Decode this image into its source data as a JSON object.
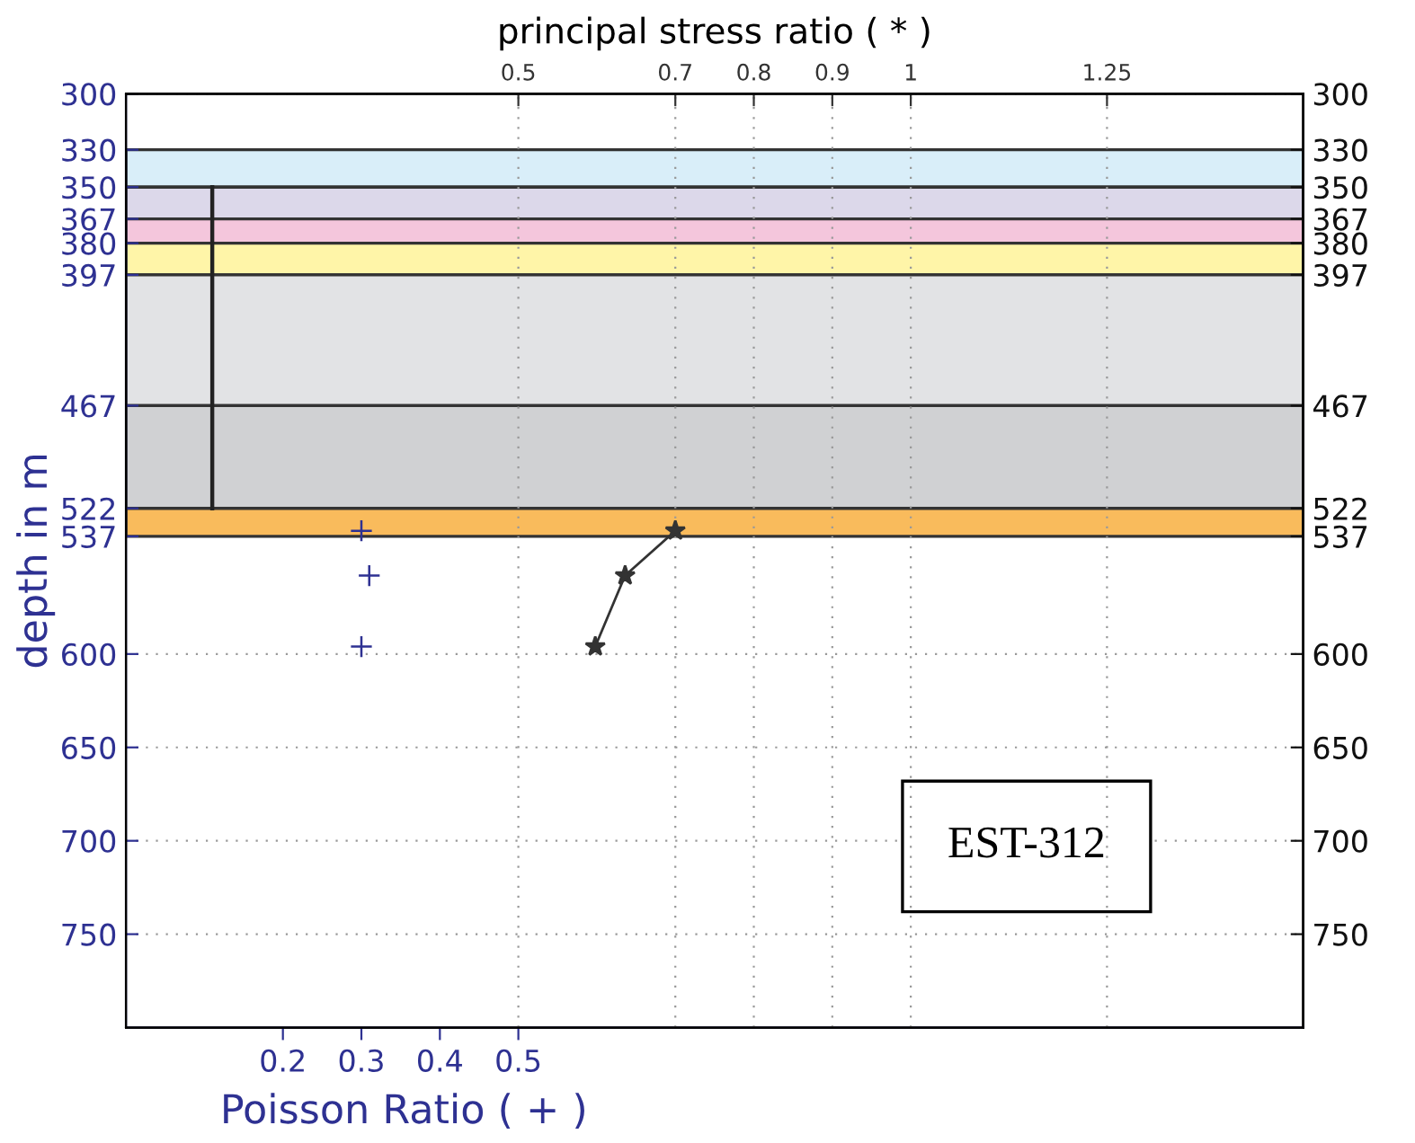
{
  "chart_data": {
    "type": "scatter",
    "xlabel": "Poisson Ratio ( + )",
    "x2label": "principal stress ratio ( * )",
    "ylabel": "depth in m",
    "xlim": [
      0,
      1.5
    ],
    "xticks": [
      0.2,
      0.3,
      0.4,
      0.5
    ],
    "x2lim": [
      0,
      1.5
    ],
    "x2ticks": [
      0.5,
      0.7,
      0.8,
      0.9,
      1,
      1.25
    ],
    "ylim": [
      800,
      300
    ],
    "yticks": [
      300,
      330,
      350,
      367,
      380,
      397,
      467,
      522,
      537,
      600,
      650,
      700,
      750
    ],
    "y2lim": [
      800,
      300
    ],
    "y2ticks": [
      300,
      330,
      350,
      367,
      380,
      397,
      467,
      522,
      537,
      600,
      650,
      700,
      750
    ],
    "grid": true,
    "bands": [
      {
        "axis": "y",
        "from": 330,
        "to": 350,
        "color": "#d9eef9"
      },
      {
        "axis": "y",
        "from": 350,
        "to": 367,
        "color": "#dcd8ea"
      },
      {
        "axis": "y",
        "from": 367,
        "to": 380,
        "color": "#f4c6dc"
      },
      {
        "axis": "y",
        "from": 380,
        "to": 397,
        "color": "#fff5a8"
      },
      {
        "axis": "y",
        "from": 397,
        "to": 467,
        "color": "#e2e3e5"
      },
      {
        "axis": "y",
        "from": 467,
        "to": 522,
        "color": "#d0d1d3"
      },
      {
        "axis": "y",
        "from": 522,
        "to": 537,
        "color": "#f9bb5c"
      }
    ],
    "series": [
      {
        "type": "line",
        "color": "#222222",
        "x": [
          0.11,
          0.11
        ],
        "values": [
          350,
          522
        ],
        "marker": "none"
      },
      {
        "color": "#2e3192",
        "x": [
          0.3,
          0.31,
          0.3
        ],
        "values": [
          534,
          558,
          596
        ],
        "marker": "cross"
      },
      {
        "type": "line",
        "axis": "x2",
        "color": "#333333",
        "x": [
          0.7,
          0.636,
          0.598
        ],
        "values": [
          534,
          558,
          596
        ],
        "marker": "star"
      }
    ],
    "annotations": [
      "EST-312"
    ]
  }
}
